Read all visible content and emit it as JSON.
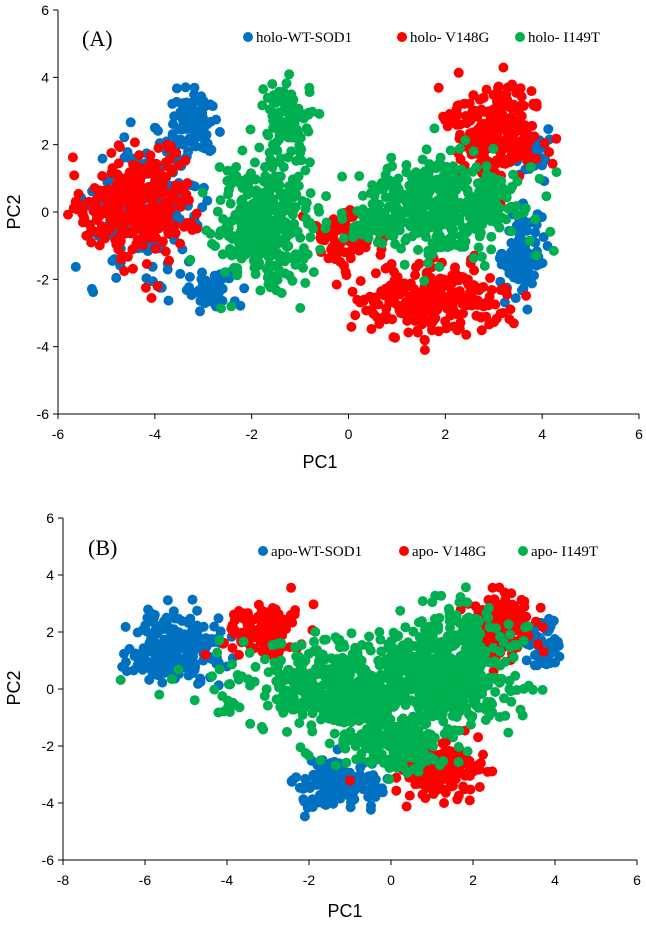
{
  "chart_data": [
    {
      "type": "scatter",
      "panel_label": "(A)",
      "xlabel": "PC1",
      "ylabel": "PC2",
      "xlim": [
        -6,
        6
      ],
      "ylim": [
        -6,
        6
      ],
      "x_ticks": [
        "-6",
        "-4",
        "-2",
        "0",
        "2",
        "4",
        "6"
      ],
      "y_ticks": [
        "-6",
        "-4",
        "-2",
        "0",
        "2",
        "4",
        "6"
      ],
      "legend_position": "top-right",
      "series": [
        {
          "name": "holo-WT-SOD1",
          "color": "#0070C0",
          "clusters": [
            {
              "cx": -4.2,
              "cy": 0.2,
              "rx": 1.1,
              "ry": 1.8,
              "n": 220
            },
            {
              "cx": -3.2,
              "cy": 2.6,
              "rx": 0.5,
              "ry": 1.0,
              "n": 90
            },
            {
              "cx": -2.8,
              "cy": -2.3,
              "rx": 0.6,
              "ry": 0.5,
              "n": 60
            },
            {
              "cx": 3.6,
              "cy": -1.2,
              "rx": 0.4,
              "ry": 1.3,
              "n": 90
            },
            {
              "cx": 3.8,
              "cy": 1.8,
              "rx": 0.3,
              "ry": 0.8,
              "n": 40
            }
          ]
        },
        {
          "name": "holo- V148G",
          "color": "#FF0000",
          "clusters": [
            {
              "cx": -4.2,
              "cy": 0.3,
              "rx": 1.0,
              "ry": 1.7,
              "n": 280
            },
            {
              "cx": -5.2,
              "cy": 0.0,
              "rx": 0.4,
              "ry": 0.8,
              "n": 40
            },
            {
              "cx": 1.8,
              "cy": -2.6,
              "rx": 1.5,
              "ry": 1.0,
              "n": 260
            },
            {
              "cx": 3.0,
              "cy": 2.5,
              "rx": 1.0,
              "ry": 1.4,
              "n": 220
            },
            {
              "cx": 0.0,
              "cy": -0.8,
              "rx": 0.7,
              "ry": 0.8,
              "n": 70
            }
          ]
        },
        {
          "name": "holo- I149T",
          "color": "#00B050",
          "clusters": [
            {
              "cx": -1.7,
              "cy": -0.3,
              "rx": 1.0,
              "ry": 1.9,
              "n": 380
            },
            {
              "cx": -1.3,
              "cy": 2.8,
              "rx": 0.5,
              "ry": 1.0,
              "n": 90
            },
            {
              "cx": 2.0,
              "cy": 0.2,
              "rx": 1.5,
              "ry": 1.4,
              "n": 420
            },
            {
              "cx": 0.5,
              "cy": -0.3,
              "rx": 0.6,
              "ry": 0.5,
              "n": 70
            }
          ]
        }
      ]
    },
    {
      "type": "scatter",
      "panel_label": "(B)",
      "xlabel": "PC1",
      "ylabel": "PC2",
      "xlim": [
        -8,
        6
      ],
      "ylim": [
        -6,
        6
      ],
      "x_ticks": [
        "-8",
        "-6",
        "-4",
        "-2",
        "0",
        "2",
        "4",
        "6"
      ],
      "y_ticks": [
        "-6",
        "-4",
        "-2",
        "0",
        "2",
        "4",
        "6"
      ],
      "legend_position": "top-right",
      "series": [
        {
          "name": "apo-WT-SOD1",
          "color": "#0070C0",
          "clusters": [
            {
              "cx": -5.2,
              "cy": 1.4,
              "rx": 1.1,
              "ry": 1.3,
              "n": 220
            },
            {
              "cx": -1.3,
              "cy": -3.4,
              "rx": 1.0,
              "ry": 0.8,
              "n": 160
            },
            {
              "cx": 3.7,
              "cy": 1.5,
              "rx": 0.4,
              "ry": 0.9,
              "n": 60
            }
          ]
        },
        {
          "name": "apo- V148G",
          "color": "#FF0000",
          "clusters": [
            {
              "cx": -3.1,
              "cy": 2.1,
              "rx": 1.0,
              "ry": 0.9,
              "n": 110
            },
            {
              "cx": 1.2,
              "cy": -2.8,
              "rx": 1.0,
              "ry": 0.9,
              "n": 160
            },
            {
              "cx": 2.7,
              "cy": 2.2,
              "rx": 0.8,
              "ry": 1.1,
              "n": 140
            }
          ]
        },
        {
          "name": "apo- I149T",
          "color": "#00B050",
          "clusters": [
            {
              "cx": -1.0,
              "cy": 0.0,
              "rx": 2.8,
              "ry": 1.6,
              "n": 560
            },
            {
              "cx": 1.5,
              "cy": 0.8,
              "rx": 1.6,
              "ry": 2.2,
              "n": 420
            },
            {
              "cx": 0.0,
              "cy": -2.0,
              "rx": 1.2,
              "ry": 0.9,
              "n": 160
            }
          ]
        }
      ]
    }
  ]
}
